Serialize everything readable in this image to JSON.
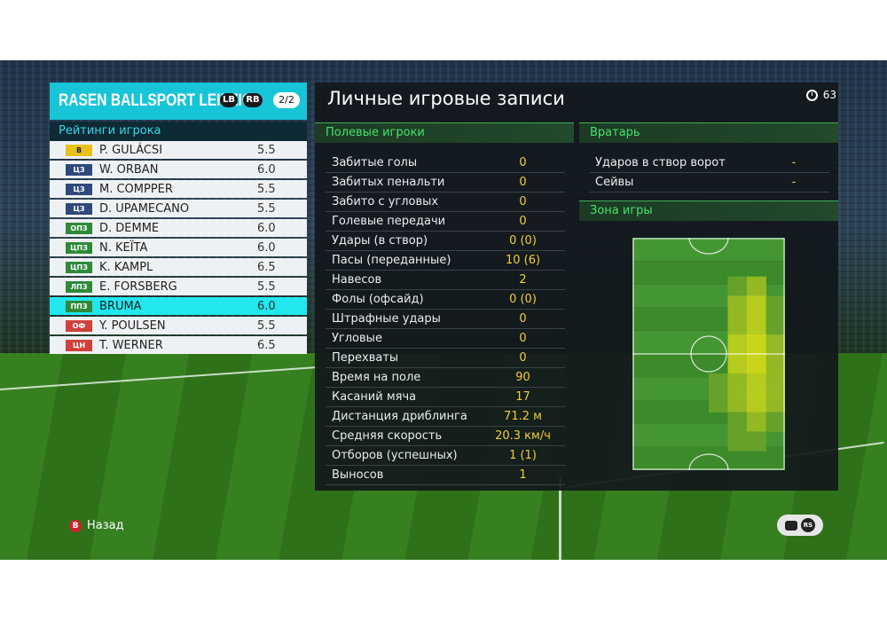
{
  "team": {
    "name": "RASEN BALLSPORT LEIPZIG",
    "button_left": "LB",
    "button_right": "RB",
    "page": "2/2"
  },
  "ratings": {
    "title": "Рейтинги игрока",
    "players": [
      {
        "pos": "В",
        "name": "P. GULÁCSI",
        "rating": "5.5",
        "pos_bg": "#e8c11b",
        "pos_fg": "#222222"
      },
      {
        "pos": "ЦЗ",
        "name": "W. ORBAN",
        "rating": "6.0",
        "pos_bg": "#2f4a7a",
        "pos_fg": "#ffffff"
      },
      {
        "pos": "ЦЗ",
        "name": "M. COMPPER",
        "rating": "5.5",
        "pos_bg": "#2f4a7a",
        "pos_fg": "#ffffff"
      },
      {
        "pos": "ЦЗ",
        "name": "D. UPAMECANO",
        "rating": "5.5",
        "pos_bg": "#2f4a7a",
        "pos_fg": "#ffffff"
      },
      {
        "pos": "ОПЗ",
        "name": "D. DEMME",
        "rating": "6.0",
        "pos_bg": "#2e8a3a",
        "pos_fg": "#ffffff"
      },
      {
        "pos": "ЦПЗ",
        "name": "N. KEÏTA",
        "rating": "6.0",
        "pos_bg": "#2e8a3a",
        "pos_fg": "#ffffff"
      },
      {
        "pos": "ЦПЗ",
        "name": "K. KAMPL",
        "rating": "6.5",
        "pos_bg": "#2e8a3a",
        "pos_fg": "#ffffff"
      },
      {
        "pos": "ЛПЗ",
        "name": "E. FORSBERG",
        "rating": "5.5",
        "pos_bg": "#2e8a3a",
        "pos_fg": "#ffffff"
      },
      {
        "pos": "ППЗ",
        "name": "BRUMA",
        "rating": "6.0",
        "pos_bg": "#2e8a3a",
        "pos_fg": "#ffffff",
        "selected": true
      },
      {
        "pos": "ОФ",
        "name": "Y. POULSEN",
        "rating": "5.5",
        "pos_bg": "#d0403c",
        "pos_fg": "#ffffff"
      },
      {
        "pos": "ЦН",
        "name": "T. WERNER",
        "rating": "6.5",
        "pos_bg": "#d0403c",
        "pos_fg": "#ffffff"
      }
    ]
  },
  "records": {
    "title": "Личные игровые записи",
    "timer": "63",
    "field_players": {
      "title": "Полевые игроки",
      "stats": [
        {
          "label": "Забитые голы",
          "value": "0"
        },
        {
          "label": "Забитых пенальти",
          "value": "0"
        },
        {
          "label": "Забито с угловых",
          "value": "0"
        },
        {
          "label": "Голевые передачи",
          "value": "0"
        },
        {
          "label": "Удары (в створ)",
          "value": "0 (0)"
        },
        {
          "label": "Пасы (переданные)",
          "value": "10 (6)"
        },
        {
          "label": "Навесов",
          "value": "2"
        },
        {
          "label": "Фолы (офсайд)",
          "value": "0 (0)"
        },
        {
          "label": "Штрафные удары",
          "value": "0"
        },
        {
          "label": "Угловые",
          "value": "0"
        },
        {
          "label": "Перехваты",
          "value": "0"
        },
        {
          "label": "Время на поле",
          "value": "90"
        },
        {
          "label": "Касаний мяча",
          "value": "17"
        },
        {
          "label": "Дистанция дриблинга",
          "value": "71.2 м"
        },
        {
          "label": "Средняя скорость",
          "value": "20.3 км/ч"
        },
        {
          "label": "Отборов (успешных)",
          "value": "1 (1)"
        },
        {
          "label": "Выносов",
          "value": "1"
        }
      ]
    },
    "goalkeeper": {
      "title": "Вратарь",
      "stats": [
        {
          "label": "Ударов в створ ворот",
          "value": "-"
        },
        {
          "label": "Сейвы",
          "value": "-"
        }
      ]
    },
    "play_zone": {
      "title": "Зона игры",
      "rows": 12,
      "cols": 8,
      "cells": [
        "00000000",
        "00000000",
        "00000120",
        "00000231",
        "00000231",
        "00000342",
        "00000342",
        "00001232",
        "00001232",
        "00000121",
        "00000110",
        "00000000"
      ]
    }
  },
  "footer": {
    "back_button_glyph": "B",
    "back_label": "Назад",
    "rs_label": "RS"
  }
}
